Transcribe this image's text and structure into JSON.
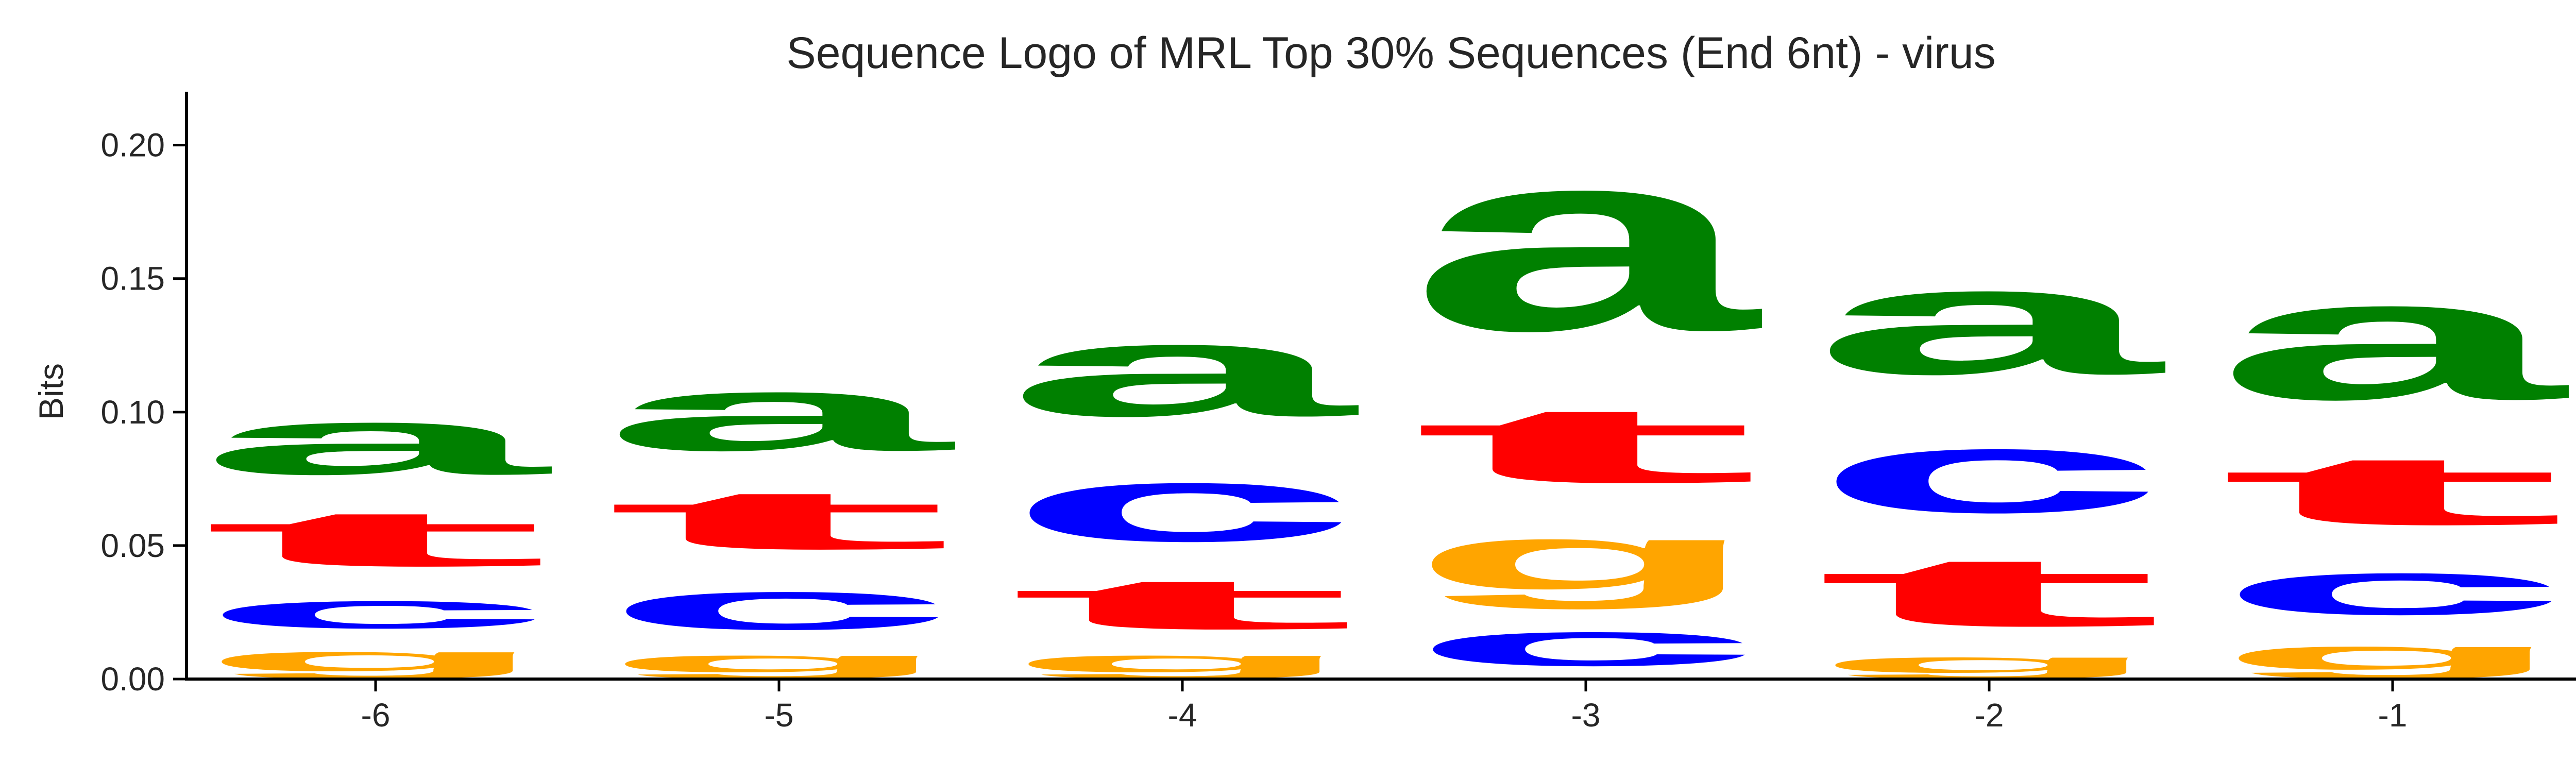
{
  "chart_data": {
    "type": "sequence-logo",
    "title": "Sequence Logo of MRL Top 30% Sequences (End 6nt) - virus",
    "xlabel": "",
    "ylabel": "Bits",
    "ylim": [
      0,
      0.22
    ],
    "yticks": [
      "0.00",
      "0.05",
      "0.10",
      "0.15",
      "0.20"
    ],
    "ytick_values": [
      0,
      0.05,
      0.1,
      0.15,
      0.2
    ],
    "grid": false,
    "colors": {
      "a": "#008000",
      "c": "#0000ff",
      "g": "#ffa500",
      "t": "#ff0000"
    },
    "positions": [
      {
        "label": "-6",
        "stack": [
          {
            "letter": "g",
            "height": 0.015
          },
          {
            "letter": "c",
            "height": 0.021
          },
          {
            "letter": "t",
            "height": 0.033
          },
          {
            "letter": "a",
            "height": 0.04
          }
        ]
      },
      {
        "label": "-5",
        "stack": [
          {
            "letter": "g",
            "height": 0.013
          },
          {
            "letter": "c",
            "height": 0.029
          },
          {
            "letter": "t",
            "height": 0.035
          },
          {
            "letter": "a",
            "height": 0.045
          }
        ]
      },
      {
        "label": "-4",
        "stack": [
          {
            "letter": "g",
            "height": 0.013
          },
          {
            "letter": "t",
            "height": 0.03
          },
          {
            "letter": "c",
            "height": 0.045
          },
          {
            "letter": "a",
            "height": 0.055
          }
        ]
      },
      {
        "label": "-3",
        "stack": [
          {
            "letter": "c",
            "height": 0.026
          },
          {
            "letter": "g",
            "height": 0.039
          },
          {
            "letter": "t",
            "height": 0.045
          },
          {
            "letter": "a",
            "height": 0.108
          }
        ]
      },
      {
        "label": "-2",
        "stack": [
          {
            "letter": "g",
            "height": 0.012
          },
          {
            "letter": "t",
            "height": 0.041
          },
          {
            "letter": "c",
            "height": 0.049
          },
          {
            "letter": "a",
            "height": 0.064
          }
        ]
      },
      {
        "label": "-1",
        "stack": [
          {
            "letter": "g",
            "height": 0.018
          },
          {
            "letter": "c",
            "height": 0.032
          },
          {
            "letter": "t",
            "height": 0.041
          },
          {
            "letter": "a",
            "height": 0.072
          }
        ]
      }
    ]
  }
}
